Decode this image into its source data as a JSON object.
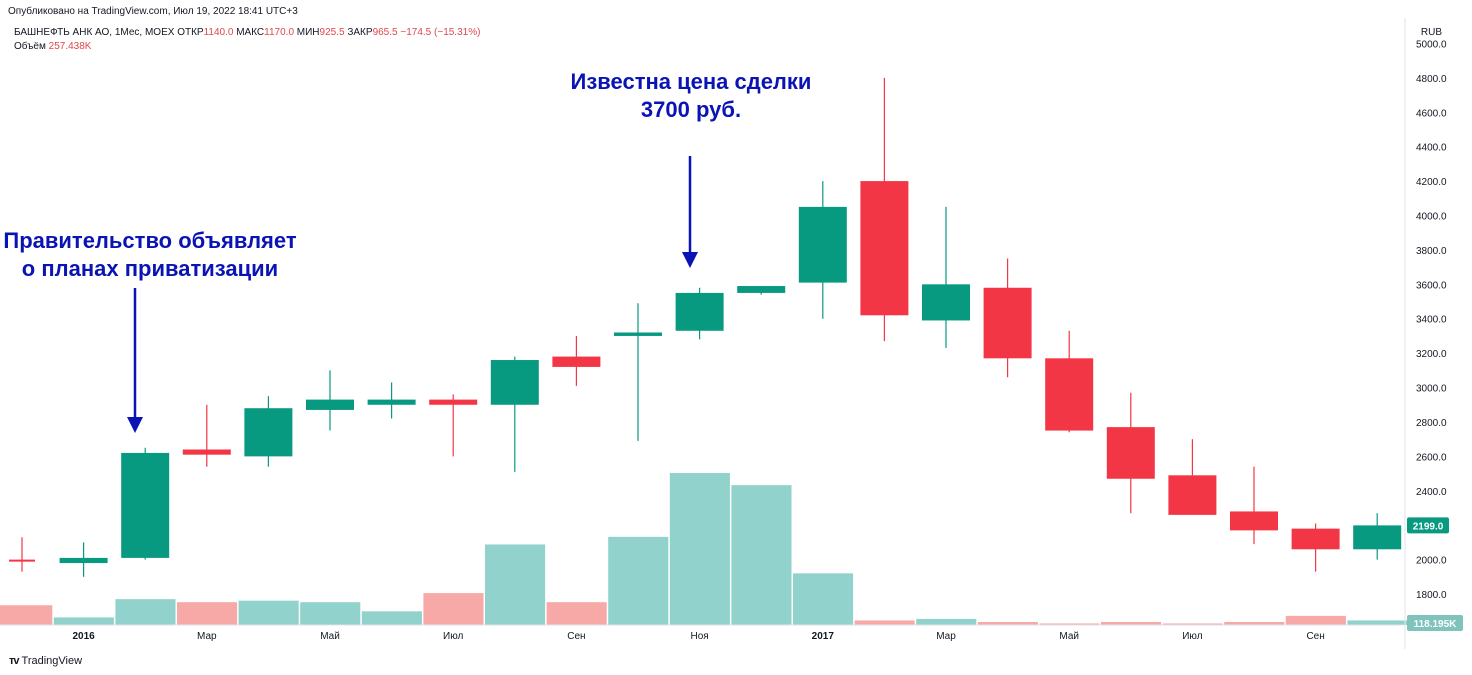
{
  "header": {
    "published": "Опубликовано на TradingView.com, Июл 19, 2022 18:41 UTC+3",
    "symbol": "БАШНЕФТЬ АНК АО, 1Мес, MOEX",
    "open_label": "ОТКР",
    "open": "1140.0",
    "high_label": "МАКС",
    "high": "1170.0",
    "low_label": "МИН",
    "low": "925.5",
    "close_label": "ЗАКР",
    "close": "965.5",
    "change": "−174.5 (−15.31%)",
    "volume_label": "Объём",
    "volume": "257.438K",
    "currency": "RUB"
  },
  "annotations": {
    "left": "Правительство объявляет\nо планах приватизации",
    "right": "Известна цена сделки\n3700 руб."
  },
  "brand": "TradingView",
  "colors": {
    "up": "#089981",
    "down": "#f23645",
    "vol_up": "#92d2cc",
    "vol_down": "#f7a9a7",
    "annotation": "#0a14b4"
  },
  "chart_data": {
    "type": "candlestick",
    "ylim": [
      1620,
      5020
    ],
    "yticks": [
      1800,
      2000,
      2200,
      2400,
      2600,
      2800,
      3000,
      3200,
      3400,
      3600,
      3800,
      4000,
      4200,
      4400,
      4600,
      4800,
      5000
    ],
    "ytick_labels": [
      "1800.0",
      "2000.0",
      "2200.0",
      "2400.0",
      "2600.0",
      "2800.0",
      "3000.0",
      "3200.0",
      "3400.0",
      "3600.0",
      "3800.0",
      "4000.0",
      "4200.0",
      "4400.0",
      "4600.0",
      "4800.0",
      "5000.0"
    ],
    "xtick_labels": [
      {
        "index": 1,
        "label": "2016",
        "bold": true
      },
      {
        "index": 3,
        "label": "Мар",
        "bold": false
      },
      {
        "index": 5,
        "label": "Май",
        "bold": false
      },
      {
        "index": 7,
        "label": "Июл",
        "bold": false
      },
      {
        "index": 9,
        "label": "Сен",
        "bold": false
      },
      {
        "index": 11,
        "label": "Ноя",
        "bold": false
      },
      {
        "index": 13,
        "label": "2017",
        "bold": true
      },
      {
        "index": 15,
        "label": "Мар",
        "bold": false
      },
      {
        "index": 17,
        "label": "Май",
        "bold": false
      },
      {
        "index": 19,
        "label": "Июл",
        "bold": false
      },
      {
        "index": 21,
        "label": "Сен",
        "bold": false
      }
    ],
    "candles": [
      {
        "o": 2000,
        "h": 2130,
        "l": 1930,
        "c": 1990
      },
      {
        "o": 1980,
        "h": 2100,
        "l": 1900,
        "c": 2010
      },
      {
        "o": 2010,
        "h": 2650,
        "l": 2000,
        "c": 2620
      },
      {
        "o": 2640,
        "h": 2900,
        "l": 2540,
        "c": 2610
      },
      {
        "o": 2600,
        "h": 2950,
        "l": 2540,
        "c": 2880
      },
      {
        "o": 2870,
        "h": 3100,
        "l": 2750,
        "c": 2930
      },
      {
        "o": 2900,
        "h": 3030,
        "l": 2820,
        "c": 2930
      },
      {
        "o": 2930,
        "h": 2960,
        "l": 2600,
        "c": 2900
      },
      {
        "o": 2900,
        "h": 3180,
        "l": 2510,
        "c": 3160
      },
      {
        "o": 3180,
        "h": 3300,
        "l": 3010,
        "c": 3120
      },
      {
        "o": 3300,
        "h": 3490,
        "l": 2690,
        "c": 3320
      },
      {
        "o": 3330,
        "h": 3580,
        "l": 3280,
        "c": 3550
      },
      {
        "o": 3550,
        "h": 3590,
        "l": 3540,
        "c": 3590
      },
      {
        "o": 3610,
        "h": 4200,
        "l": 3400,
        "c": 4050
      },
      {
        "o": 4200,
        "h": 4800,
        "l": 3270,
        "c": 3420
      },
      {
        "o": 3390,
        "h": 4050,
        "l": 3230,
        "c": 3600
      },
      {
        "o": 3580,
        "h": 3750,
        "l": 3060,
        "c": 3170
      },
      {
        "o": 3170,
        "h": 3330,
        "l": 2740,
        "c": 2750
      },
      {
        "o": 2770,
        "h": 2970,
        "l": 2270,
        "c": 2470
      },
      {
        "o": 2490,
        "h": 2700,
        "l": 2260,
        "c": 2260
      },
      {
        "o": 2280,
        "h": 2540,
        "l": 2090,
        "c": 2170
      },
      {
        "o": 2180,
        "h": 2210,
        "l": 1930,
        "c": 2060
      },
      {
        "o": 2060,
        "h": 2270,
        "l": 2000,
        "c": 2199
      }
    ],
    "volumes": [
      0.13,
      0.05,
      0.17,
      0.15,
      0.16,
      0.15,
      0.09,
      0.21,
      0.53,
      0.15,
      0.58,
      1.0,
      0.92,
      0.34,
      0.03,
      0.04,
      0.02,
      0.01,
      0.02,
      0.01,
      0.02,
      0.06,
      0.03
    ],
    "last_price_label": "2199.0",
    "last_volume_label": "118.195K"
  }
}
